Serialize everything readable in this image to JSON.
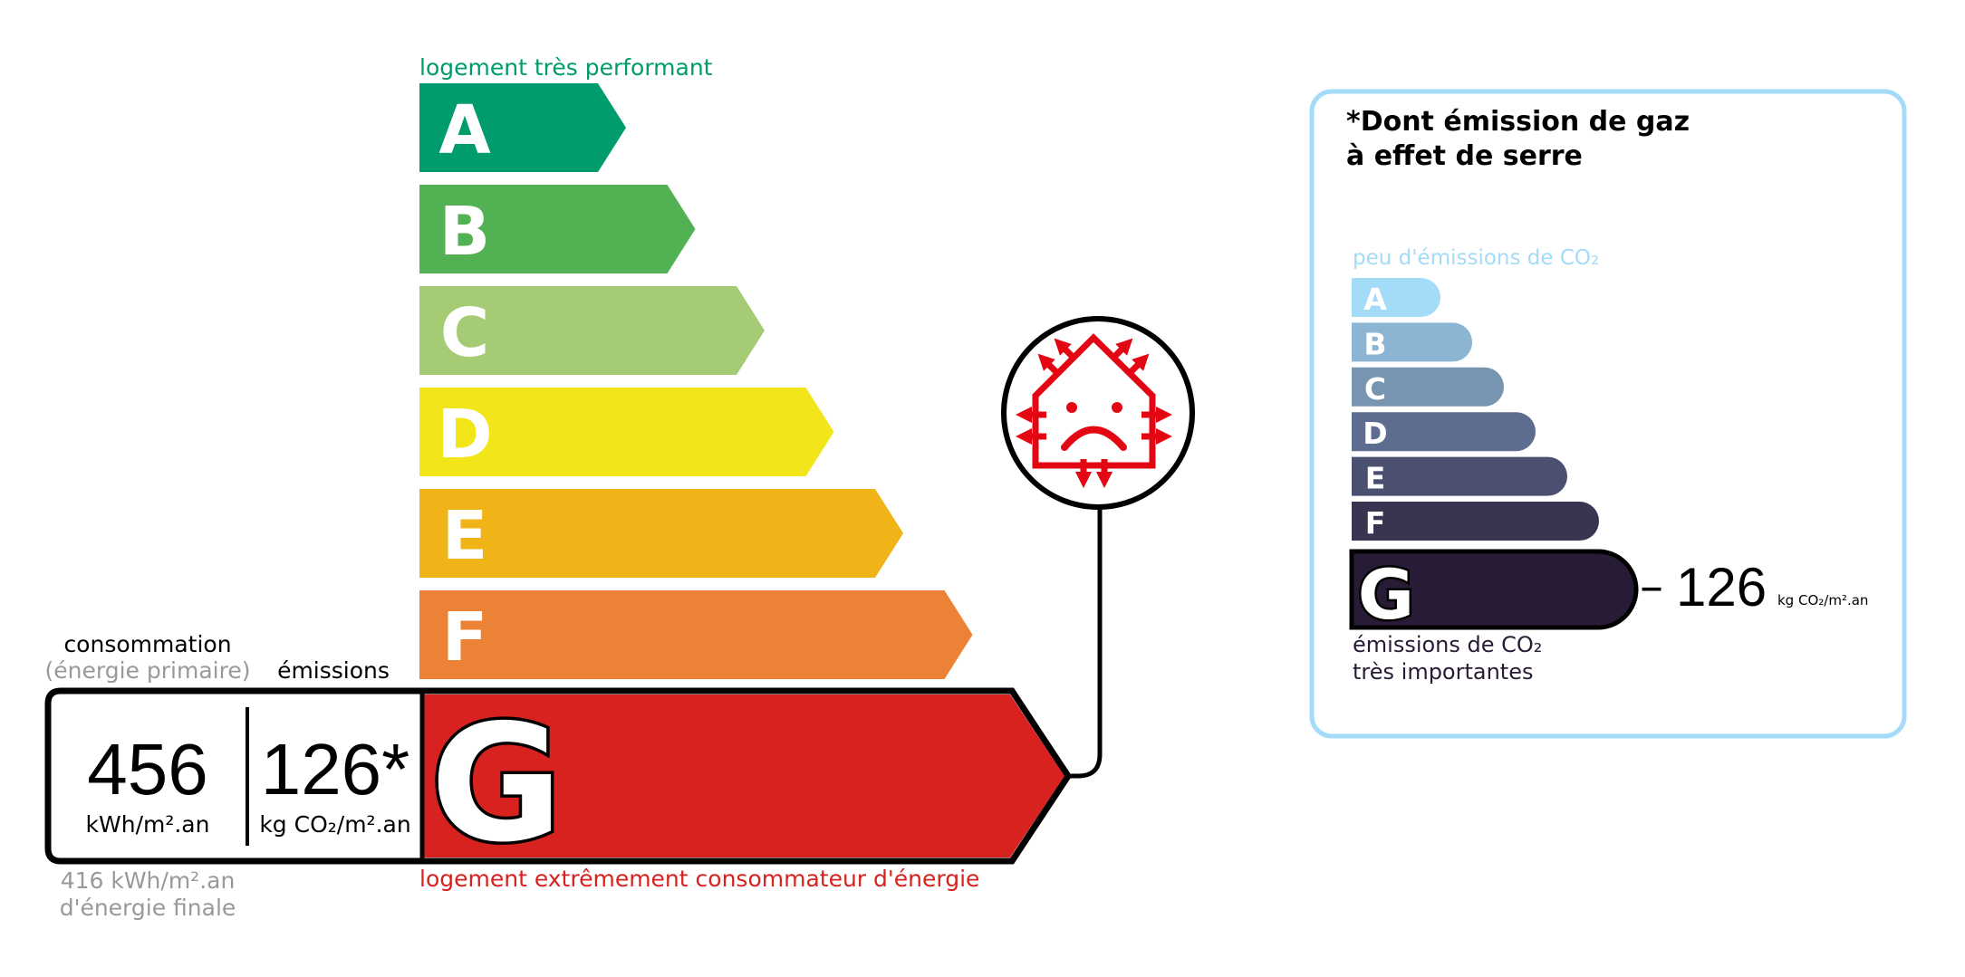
{
  "energy_label": {
    "top_caption": "logement très performant",
    "bottom_caption": "logement extrêmement consommateur d'énergie",
    "classes": [
      {
        "letter": "A",
        "color": "#009c6d"
      },
      {
        "letter": "B",
        "color": "#52b153"
      },
      {
        "letter": "C",
        "color": "#a5cc74"
      },
      {
        "letter": "D",
        "color": "#f2e51a"
      },
      {
        "letter": "E",
        "color": "#f0b419"
      },
      {
        "letter": "F",
        "color": "#eb8235"
      },
      {
        "letter": "G",
        "color": "#d7221f"
      }
    ],
    "current_class": "G",
    "consumption_header": "consommation",
    "consumption_subheader": "(énergie primaire)",
    "emissions_header": "émissions",
    "consumption_value": "456",
    "consumption_unit": "kWh/m².an",
    "emissions_value": "126*",
    "emissions_unit": "kg CO₂/m².an",
    "final_energy_value": "416 kWh/m².an",
    "final_energy_label": "d'énergie finale",
    "icon": "sad-house-heat-loss-icon",
    "icon_color": "#e30613"
  },
  "ghg_label": {
    "title_line1": "*Dont émission de gaz",
    "title_line2": "à effet de serre",
    "top_caption": "peu d'émissions de CO₂",
    "bottom_caption_line1": "émissions de CO₂",
    "bottom_caption_line2": "très importantes",
    "border_color": "#a4dbf8",
    "classes": [
      {
        "letter": "A",
        "color": "#a4dbf8"
      },
      {
        "letter": "B",
        "color": "#8cb4d3"
      },
      {
        "letter": "C",
        "color": "#7794b1"
      },
      {
        "letter": "D",
        "color": "#5e6c8f"
      },
      {
        "letter": "E",
        "color": "#4b5070"
      },
      {
        "letter": "F",
        "color": "#393551"
      },
      {
        "letter": "G",
        "color": "#281b35"
      }
    ],
    "current_class": "G",
    "value": "126",
    "unit": "kg CO₂/m².an"
  }
}
